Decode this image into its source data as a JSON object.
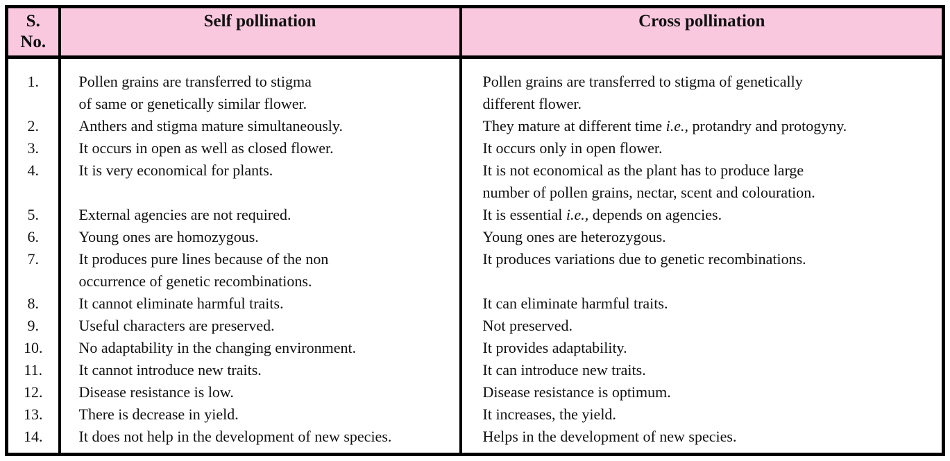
{
  "table": {
    "colors": {
      "header_bg": "#FAC8DE",
      "border": "#000000",
      "text": "#111111"
    },
    "header": {
      "sno_line1": "S.",
      "sno_line2": "No.",
      "self": "Self pollination",
      "cross": "Cross pollination"
    },
    "rows": [
      {
        "no": "1.",
        "self": [
          [
            "Pollen grains are transferred to stigma"
          ],
          [
            "of same or genetically similar flower."
          ]
        ],
        "cross": [
          [
            "Pollen grains are transferred to stigma of genetically"
          ],
          [
            "different flower."
          ]
        ]
      },
      {
        "no": "2.",
        "self": [
          [
            "Anthers and stigma mature simultaneously."
          ]
        ],
        "cross": [
          [
            "They mature at different time ",
            {
              "t": "i.e.,",
              "italic": true
            },
            " protandry and protogyny."
          ]
        ]
      },
      {
        "no": "3.",
        "self": [
          [
            "It occurs in open as well as closed flower."
          ]
        ],
        "cross": [
          [
            "It occurs only in open flower."
          ]
        ]
      },
      {
        "no": "4.",
        "self": [
          [
            "It is very economical for plants."
          ]
        ],
        "cross": [
          [
            "It is not economical as the plant has to produce large"
          ],
          [
            "number of pollen grains, nectar, scent and colouration."
          ]
        ]
      },
      {
        "no": "5.",
        "self": [
          [
            "External agencies are not required."
          ]
        ],
        "cross": [
          [
            "It is essential ",
            {
              "t": "i.e.,",
              "italic": true
            },
            " depends on agencies."
          ]
        ]
      },
      {
        "no": "6.",
        "self": [
          [
            "Young ones are homozygous."
          ]
        ],
        "cross": [
          [
            "Young ones are heterozygous."
          ]
        ]
      },
      {
        "no": "7.",
        "self": [
          [
            "It produces pure lines because of the non"
          ],
          [
            "occurrence of genetic recombinations."
          ]
        ],
        "cross": [
          [
            "It produces variations due to genetic recombinations."
          ]
        ]
      },
      {
        "no": "8.",
        "self": [
          [
            "It cannot eliminate harmful traits."
          ]
        ],
        "cross": [
          [
            "It can eliminate harmful traits."
          ]
        ]
      },
      {
        "no": "9.",
        "self": [
          [
            "Useful characters are preserved."
          ]
        ],
        "cross": [
          [
            "Not preserved."
          ]
        ]
      },
      {
        "no": "10.",
        "self": [
          [
            "No adaptability in the changing environment."
          ]
        ],
        "cross": [
          [
            "It provides adaptability."
          ]
        ]
      },
      {
        "no": "11.",
        "self": [
          [
            "It cannot introduce new traits."
          ]
        ],
        "cross": [
          [
            "It can introduce new traits."
          ]
        ]
      },
      {
        "no": "12.",
        "self": [
          [
            "Disease resistance is low."
          ]
        ],
        "cross": [
          [
            "Disease resistance is optimum."
          ]
        ]
      },
      {
        "no": "13.",
        "self": [
          [
            "There is decrease in yield."
          ]
        ],
        "cross": [
          [
            "It increases, the yield."
          ]
        ]
      },
      {
        "no": "14.",
        "self": [
          [
            "It does not help in the development of new species."
          ]
        ],
        "cross": [
          [
            "Helps in the development of new species."
          ]
        ]
      }
    ]
  }
}
